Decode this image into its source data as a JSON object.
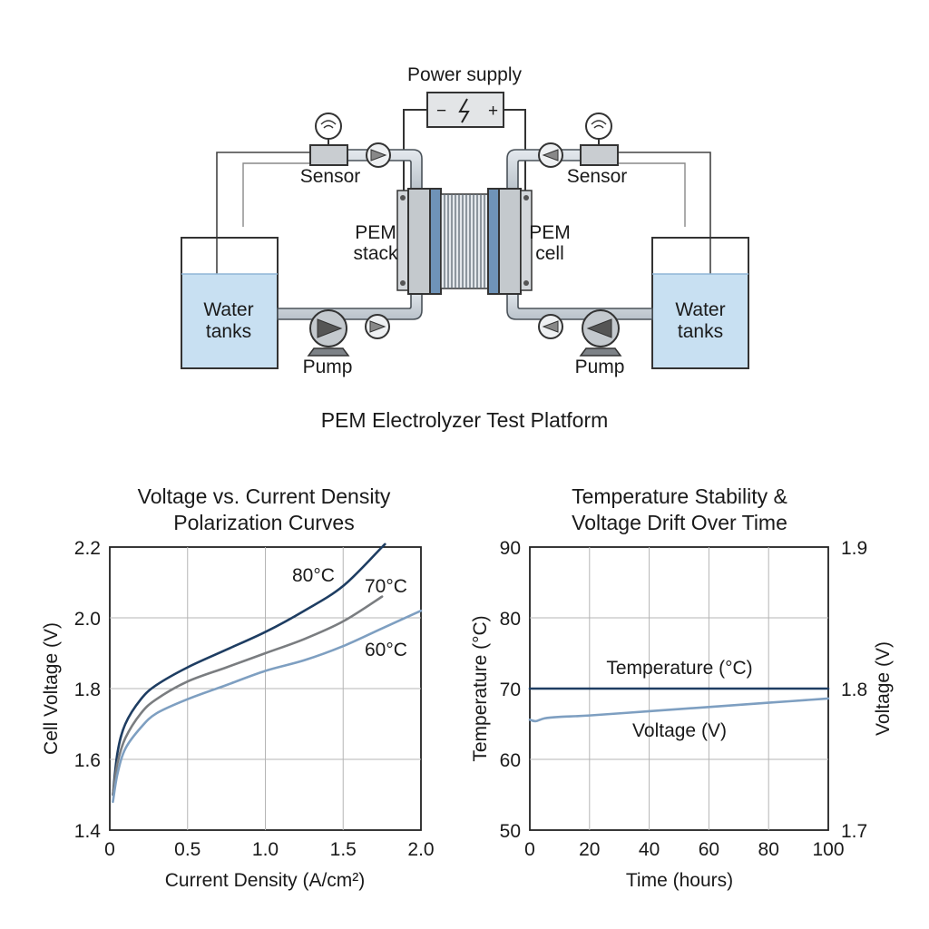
{
  "diagram": {
    "power_supply_label": "Power supply",
    "power_minus": "−",
    "power_plus": "+",
    "sensor_left": "Sensor",
    "sensor_right": "Sensor",
    "stack_label_line1": "PEM",
    "stack_label_line2": "stack",
    "cell_label_line1": "PEM",
    "cell_label_line2": "cell",
    "tank_left_line1": "Water",
    "tank_left_line2": "tanks",
    "tank_right_line1": "Water",
    "tank_right_line2": "tanks",
    "pump_left": "Pump",
    "pump_right": "Pump",
    "caption": "PEM Electrolyzer Test Platform",
    "colors": {
      "water": "#c8e0f2",
      "pipe": "#cfd6dc",
      "stack_blue": "#6f93b8",
      "navy": "#1e3d62"
    }
  },
  "chart_data": [
    {
      "type": "line",
      "title": "Voltage vs. Current Density Polarization Curves",
      "title_line1": "Voltage vs. Current Density",
      "title_line2": "Polarization Curves",
      "xlabel": "Current Density (A/cm²)",
      "ylabel": "Cell Voltage (V)",
      "xlim": [
        0,
        2.0
      ],
      "ylim": [
        1.4,
        2.2
      ],
      "xticks": [
        "0",
        "0.5",
        "1.0",
        "1.5",
        "2.0"
      ],
      "yticks": [
        "1.4",
        "1.6",
        "1.8",
        "2.0",
        "2.2"
      ],
      "grid": true,
      "series": [
        {
          "name": "80°C",
          "color": "#1e3d62",
          "x": [
            0.02,
            0.05,
            0.1,
            0.2,
            0.3,
            0.5,
            0.75,
            1.0,
            1.25,
            1.5,
            1.75,
            1.75
          ],
          "y": [
            1.5,
            1.62,
            1.7,
            1.77,
            1.81,
            1.86,
            1.91,
            1.96,
            2.02,
            2.09,
            2.2,
            2.2
          ]
        },
        {
          "name": "70°C",
          "color": "#7a7d80",
          "x": [
            0.02,
            0.05,
            0.1,
            0.2,
            0.3,
            0.5,
            0.75,
            1.0,
            1.25,
            1.5,
            1.75
          ],
          "y": [
            1.5,
            1.59,
            1.66,
            1.73,
            1.77,
            1.82,
            1.86,
            1.9,
            1.94,
            1.99,
            2.06
          ]
        },
        {
          "name": "60°C",
          "color": "#7e9fc1",
          "x": [
            0.02,
            0.05,
            0.1,
            0.2,
            0.3,
            0.5,
            0.75,
            1.0,
            1.25,
            1.5,
            1.75,
            2.0
          ],
          "y": [
            1.48,
            1.56,
            1.63,
            1.69,
            1.73,
            1.77,
            1.81,
            1.85,
            1.88,
            1.92,
            1.97,
            2.02
          ]
        }
      ]
    },
    {
      "type": "line",
      "title": "Temperature Stability & Voltage Drift Over Time",
      "title_line1": "Temperature Stability &",
      "title_line2": "Voltage Drift Over Time",
      "xlabel": "Time (hours)",
      "ylabel": "Temperature (°C)",
      "y2label": "Voltage (V)",
      "xlim": [
        0,
        100
      ],
      "ylim": [
        50,
        90
      ],
      "y2lim": [
        1.7,
        1.9
      ],
      "xticks": [
        "0",
        "20",
        "40",
        "60",
        "80",
        "100"
      ],
      "yticks": [
        "50",
        "60",
        "70",
        "80",
        "90"
      ],
      "y2ticks": [
        "1.7",
        "1.8",
        "1.9"
      ],
      "grid": true,
      "series": [
        {
          "name": "Temperature (°C)",
          "axis": "left",
          "color": "#1e3d62",
          "x": [
            0,
            100
          ],
          "y": [
            70,
            70
          ]
        },
        {
          "name": "Voltage (V)",
          "axis": "right",
          "color": "#7e9fc1",
          "x": [
            0,
            2,
            5,
            10,
            20,
            40,
            60,
            80,
            100
          ],
          "y": [
            1.778,
            1.777,
            1.779,
            1.78,
            1.781,
            1.784,
            1.787,
            1.79,
            1.793
          ]
        }
      ]
    }
  ]
}
